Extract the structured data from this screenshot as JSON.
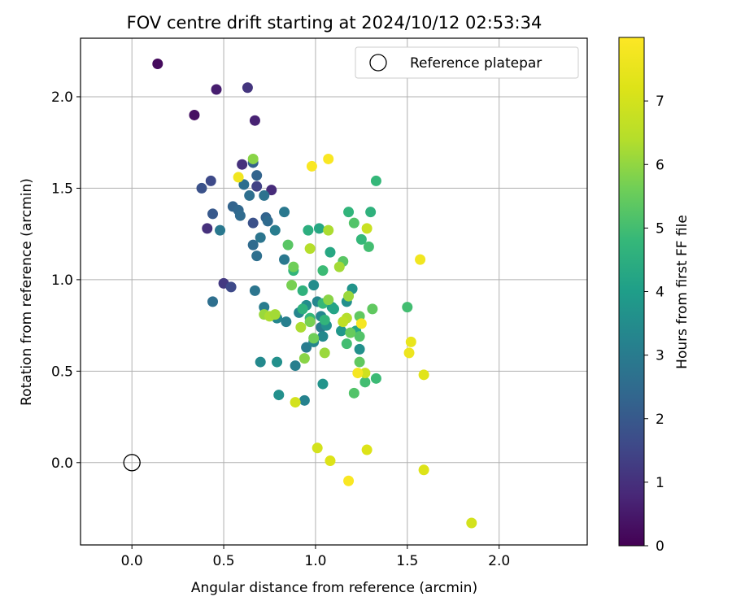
{
  "chart_data": {
    "type": "scatter",
    "title": "FOV centre drift starting at 2024/10/12 02:53:34",
    "xlabel": "Angular distance from reference (arcmin)",
    "ylabel": "Rotation from reference (arcmin)",
    "xlim": [
      -0.28,
      2.48
    ],
    "ylim": [
      -0.45,
      2.32
    ],
    "xticks": [
      "0.0",
      "0.5",
      "1.0",
      "1.5",
      "2.0"
    ],
    "yticks": [
      "0.0",
      "0.5",
      "1.0",
      "1.5",
      "2.0"
    ],
    "grid": true,
    "legend": {
      "position": "top-right",
      "entries": [
        "Reference platepar"
      ]
    },
    "reference_point": {
      "x": 0.0,
      "y": 0.0
    },
    "colorbar": {
      "label": "Hours from first FF file",
      "colormap": "viridis",
      "range": [
        0,
        8
      ],
      "ticks": [
        "0",
        "1",
        "2",
        "3",
        "4",
        "5",
        "6",
        "7"
      ]
    },
    "series": [
      {
        "points": [
          {
            "x": 0.14,
            "y": 2.18,
            "c": 0.2
          },
          {
            "x": 0.46,
            "y": 2.04,
            "c": 0.6
          },
          {
            "x": 0.63,
            "y": 2.05,
            "c": 1.1
          },
          {
            "x": 0.34,
            "y": 1.9,
            "c": 0.3
          },
          {
            "x": 0.67,
            "y": 1.87,
            "c": 0.7
          },
          {
            "x": 0.6,
            "y": 1.63,
            "c": 1.0
          },
          {
            "x": 0.76,
            "y": 1.49,
            "c": 0.9
          },
          {
            "x": 0.43,
            "y": 1.54,
            "c": 1.6
          },
          {
            "x": 0.38,
            "y": 1.5,
            "c": 1.8
          },
          {
            "x": 0.68,
            "y": 1.51,
            "c": 1.4
          },
          {
            "x": 0.41,
            "y": 1.28,
            "c": 1.0
          },
          {
            "x": 0.5,
            "y": 0.98,
            "c": 1.2
          },
          {
            "x": 0.54,
            "y": 0.96,
            "c": 1.6
          },
          {
            "x": 0.44,
            "y": 1.36,
            "c": 2.0
          },
          {
            "x": 0.66,
            "y": 1.31,
            "c": 1.8
          },
          {
            "x": 0.55,
            "y": 1.4,
            "c": 2.3
          },
          {
            "x": 0.58,
            "y": 1.38,
            "c": 2.4
          },
          {
            "x": 0.59,
            "y": 1.35,
            "c": 2.5
          },
          {
            "x": 0.61,
            "y": 1.52,
            "c": 2.6
          },
          {
            "x": 0.64,
            "y": 1.46,
            "c": 2.6
          },
          {
            "x": 0.66,
            "y": 1.64,
            "c": 2.2
          },
          {
            "x": 0.68,
            "y": 1.57,
            "c": 2.3
          },
          {
            "x": 0.72,
            "y": 1.46,
            "c": 2.7
          },
          {
            "x": 0.73,
            "y": 1.34,
            "c": 2.3
          },
          {
            "x": 0.74,
            "y": 1.32,
            "c": 2.5
          },
          {
            "x": 0.66,
            "y": 1.19,
            "c": 2.5
          },
          {
            "x": 0.7,
            "y": 1.23,
            "c": 2.8
          },
          {
            "x": 0.68,
            "y": 1.13,
            "c": 2.6
          },
          {
            "x": 0.48,
            "y": 1.27,
            "c": 2.9
          },
          {
            "x": 0.44,
            "y": 0.88,
            "c": 2.6
          },
          {
            "x": 0.67,
            "y": 0.94,
            "c": 2.8
          },
          {
            "x": 0.72,
            "y": 0.85,
            "c": 3.0
          },
          {
            "x": 0.78,
            "y": 1.27,
            "c": 3.0
          },
          {
            "x": 0.83,
            "y": 1.37,
            "c": 2.9
          },
          {
            "x": 0.83,
            "y": 1.11,
            "c": 2.9
          },
          {
            "x": 0.79,
            "y": 0.79,
            "c": 3.3
          },
          {
            "x": 0.84,
            "y": 0.77,
            "c": 3.1
          },
          {
            "x": 0.7,
            "y": 0.55,
            "c": 3.4
          },
          {
            "x": 0.79,
            "y": 0.55,
            "c": 3.6
          },
          {
            "x": 0.8,
            "y": 0.37,
            "c": 3.6
          },
          {
            "x": 0.94,
            "y": 0.34,
            "c": 3.2
          },
          {
            "x": 0.89,
            "y": 0.53,
            "c": 3.1
          },
          {
            "x": 0.95,
            "y": 0.63,
            "c": 3.0
          },
          {
            "x": 0.99,
            "y": 0.66,
            "c": 3.3
          },
          {
            "x": 1.03,
            "y": 0.74,
            "c": 3.0
          },
          {
            "x": 1.04,
            "y": 0.43,
            "c": 3.7
          },
          {
            "x": 0.91,
            "y": 0.82,
            "c": 3.3
          },
          {
            "x": 0.95,
            "y": 0.86,
            "c": 3.5
          },
          {
            "x": 0.99,
            "y": 0.97,
            "c": 3.5
          },
          {
            "x": 1.01,
            "y": 0.88,
            "c": 3.3
          },
          {
            "x": 1.03,
            "y": 0.8,
            "c": 3.3
          },
          {
            "x": 1.04,
            "y": 0.69,
            "c": 3.4
          },
          {
            "x": 1.06,
            "y": 0.75,
            "c": 3.6
          },
          {
            "x": 1.09,
            "y": 0.85,
            "c": 3.9
          },
          {
            "x": 1.1,
            "y": 0.84,
            "c": 4.2
          },
          {
            "x": 1.14,
            "y": 0.72,
            "c": 3.8
          },
          {
            "x": 1.17,
            "y": 0.88,
            "c": 3.6
          },
          {
            "x": 1.2,
            "y": 0.95,
            "c": 3.7
          },
          {
            "x": 1.24,
            "y": 0.62,
            "c": 3.6
          },
          {
            "x": 1.22,
            "y": 0.72,
            "c": 4.2
          },
          {
            "x": 1.08,
            "y": 1.15,
            "c": 4.3
          },
          {
            "x": 1.02,
            "y": 1.28,
            "c": 4.3
          },
          {
            "x": 0.96,
            "y": 1.27,
            "c": 4.5
          },
          {
            "x": 0.88,
            "y": 1.05,
            "c": 4.7
          },
          {
            "x": 0.93,
            "y": 0.94,
            "c": 4.6
          },
          {
            "x": 0.93,
            "y": 0.84,
            "c": 4.6
          },
          {
            "x": 0.97,
            "y": 0.79,
            "c": 4.8
          },
          {
            "x": 1.04,
            "y": 0.87,
            "c": 4.8
          },
          {
            "x": 1.05,
            "y": 0.78,
            "c": 4.7
          },
          {
            "x": 1.18,
            "y": 1.37,
            "c": 4.7
          },
          {
            "x": 1.3,
            "y": 1.37,
            "c": 4.6
          },
          {
            "x": 1.33,
            "y": 1.54,
            "c": 4.8
          },
          {
            "x": 1.21,
            "y": 1.31,
            "c": 5.2
          },
          {
            "x": 1.25,
            "y": 1.22,
            "c": 4.8
          },
          {
            "x": 1.29,
            "y": 1.18,
            "c": 5.0
          },
          {
            "x": 1.15,
            "y": 1.1,
            "c": 5.3
          },
          {
            "x": 1.04,
            "y": 1.05,
            "c": 4.9
          },
          {
            "x": 1.17,
            "y": 0.65,
            "c": 5.0
          },
          {
            "x": 1.24,
            "y": 0.69,
            "c": 5.2
          },
          {
            "x": 1.24,
            "y": 0.55,
            "c": 5.4
          },
          {
            "x": 1.27,
            "y": 0.44,
            "c": 5.0
          },
          {
            "x": 1.33,
            "y": 0.46,
            "c": 4.9
          },
          {
            "x": 1.21,
            "y": 0.38,
            "c": 5.2
          },
          {
            "x": 1.31,
            "y": 0.84,
            "c": 5.4
          },
          {
            "x": 1.5,
            "y": 0.85,
            "c": 5.0
          },
          {
            "x": 1.19,
            "y": 0.71,
            "c": 5.5
          },
          {
            "x": 1.24,
            "y": 0.8,
            "c": 5.4
          },
          {
            "x": 0.85,
            "y": 1.19,
            "c": 5.3
          },
          {
            "x": 0.88,
            "y": 1.07,
            "c": 5.6
          },
          {
            "x": 0.87,
            "y": 0.97,
            "c": 5.7
          },
          {
            "x": 0.94,
            "y": 0.57,
            "c": 5.9
          },
          {
            "x": 0.99,
            "y": 0.68,
            "c": 5.6
          },
          {
            "x": 0.97,
            "y": 0.77,
            "c": 5.7
          },
          {
            "x": 1.05,
            "y": 0.6,
            "c": 6.1
          },
          {
            "x": 1.07,
            "y": 0.89,
            "c": 5.9
          },
          {
            "x": 1.13,
            "y": 1.07,
            "c": 6.2
          },
          {
            "x": 0.72,
            "y": 0.81,
            "c": 6.1
          },
          {
            "x": 0.75,
            "y": 0.8,
            "c": 6.3
          },
          {
            "x": 0.78,
            "y": 0.81,
            "c": 6.2
          },
          {
            "x": 0.92,
            "y": 0.74,
            "c": 6.3
          },
          {
            "x": 0.66,
            "y": 1.66,
            "c": 5.9
          },
          {
            "x": 0.97,
            "y": 1.17,
            "c": 6.4
          },
          {
            "x": 1.07,
            "y": 1.27,
            "c": 6.3
          },
          {
            "x": 1.18,
            "y": 0.91,
            "c": 6.1
          },
          {
            "x": 1.17,
            "y": 0.79,
            "c": 6.4
          },
          {
            "x": 1.28,
            "y": 1.28,
            "c": 6.8
          },
          {
            "x": 1.15,
            "y": 0.77,
            "c": 6.6
          },
          {
            "x": 1.27,
            "y": 0.49,
            "c": 6.9
          },
          {
            "x": 0.89,
            "y": 0.33,
            "c": 7.0
          },
          {
            "x": 1.01,
            "y": 0.08,
            "c": 7.0
          },
          {
            "x": 1.08,
            "y": 0.01,
            "c": 7.2
          },
          {
            "x": 1.28,
            "y": 0.07,
            "c": 7.2
          },
          {
            "x": 1.59,
            "y": -0.04,
            "c": 7.2
          },
          {
            "x": 1.85,
            "y": -0.33,
            "c": 7.0
          },
          {
            "x": 1.59,
            "y": 0.48,
            "c": 7.3
          },
          {
            "x": 1.52,
            "y": 0.66,
            "c": 7.5
          },
          {
            "x": 1.51,
            "y": 0.6,
            "c": 7.6
          },
          {
            "x": 1.57,
            "y": 1.11,
            "c": 7.7
          },
          {
            "x": 1.23,
            "y": 0.49,
            "c": 7.8
          },
          {
            "x": 1.25,
            "y": 0.76,
            "c": 7.8
          },
          {
            "x": 0.58,
            "y": 1.56,
            "c": 7.7
          },
          {
            "x": 0.98,
            "y": 1.62,
            "c": 7.9
          },
          {
            "x": 1.07,
            "y": 1.66,
            "c": 7.9
          },
          {
            "x": 1.18,
            "y": -0.1,
            "c": 7.9
          }
        ]
      }
    ]
  }
}
